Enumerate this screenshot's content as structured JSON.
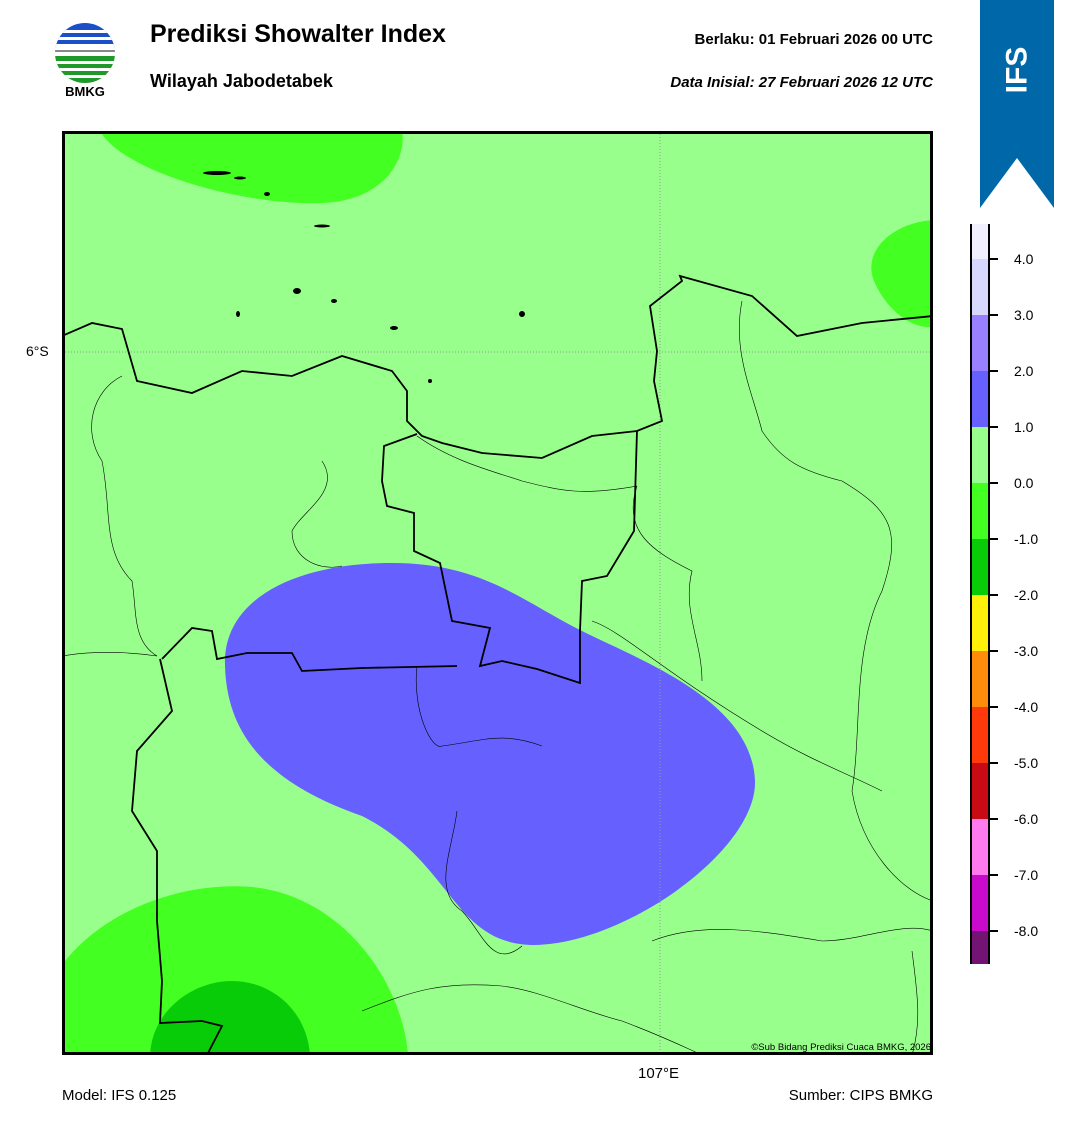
{
  "header": {
    "title": "Prediksi Showalter Index",
    "subtitle": "Wilayah Jabodetabek",
    "valid_label": "Berlaku:  01 Februari 2026 00 UTC",
    "init_label": "Data Inisial:  27 Februari 2026 12 UTC",
    "logo_text": "BMKG",
    "model_badge": "IFS",
    "badge_color": "#0068a8"
  },
  "map": {
    "lat_label": "6°S",
    "lon_label": "107°E",
    "copyright": "©Sub Bidang Prediksi Cuaca BMKG, 2026",
    "fill_colors": {
      "background": "#99ff8c",
      "light_green": "#44ff22",
      "dark_green": "#08cc08",
      "blue": "#6660ff"
    }
  },
  "footer": {
    "model": "Model: IFS 0.125",
    "source": "Sumber: CIPS BMKG"
  },
  "colorbar": {
    "ticks": [
      "4.0",
      "3.0",
      "2.0",
      "1.0",
      "0.0",
      "-1.0",
      "-2.0",
      "-3.0",
      "-4.0",
      "-5.0",
      "-6.0",
      "-7.0",
      "-8.0"
    ],
    "colors": [
      "#f0f0ff",
      "#d8d8ff",
      "#9980ff",
      "#6660ff",
      "#99ff8c",
      "#44ff22",
      "#08cc08",
      "#fff00a",
      "#ff8c0a",
      "#ff3a0a",
      "#c80a14",
      "#ff7aee",
      "#c80acc",
      "#731475"
    ]
  }
}
